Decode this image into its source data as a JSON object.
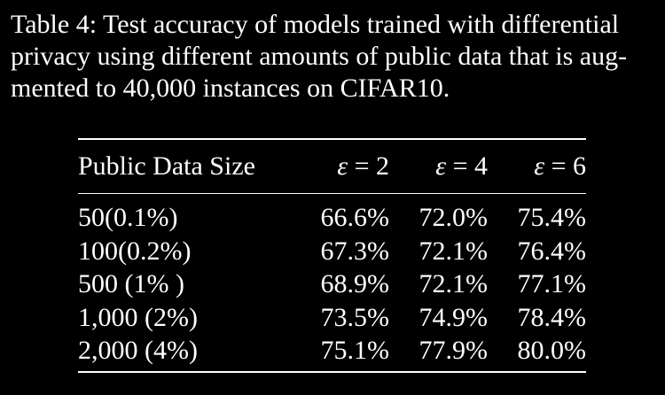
{
  "caption": {
    "lines": [
      "Table 4: Test accuracy of models trained with differential",
      "privacy using different amounts of public data that is aug-",
      "mented to 40,000 instances on CIFAR10."
    ]
  },
  "table": {
    "headers": {
      "label": "Public Data Size",
      "eps_symbol": "ε",
      "cols": [
        " = 2",
        " = 4",
        " = 6"
      ]
    },
    "rows": [
      {
        "label": "50(0.1%)",
        "values": [
          "66.6%",
          "72.0%",
          "75.4%"
        ]
      },
      {
        "label": "100(0.2%)",
        "values": [
          "67.3%",
          "72.1%",
          "76.4%"
        ]
      },
      {
        "label": "500 (1% )",
        "values": [
          "68.9%",
          "72.1%",
          "77.1%"
        ]
      },
      {
        "label": "1,000 (2%)",
        "values": [
          "73.5%",
          "74.9%",
          "78.4%"
        ]
      },
      {
        "label": "2,000 (4%)",
        "values": [
          "75.1%",
          "77.9%",
          "80.0%"
        ]
      }
    ]
  }
}
